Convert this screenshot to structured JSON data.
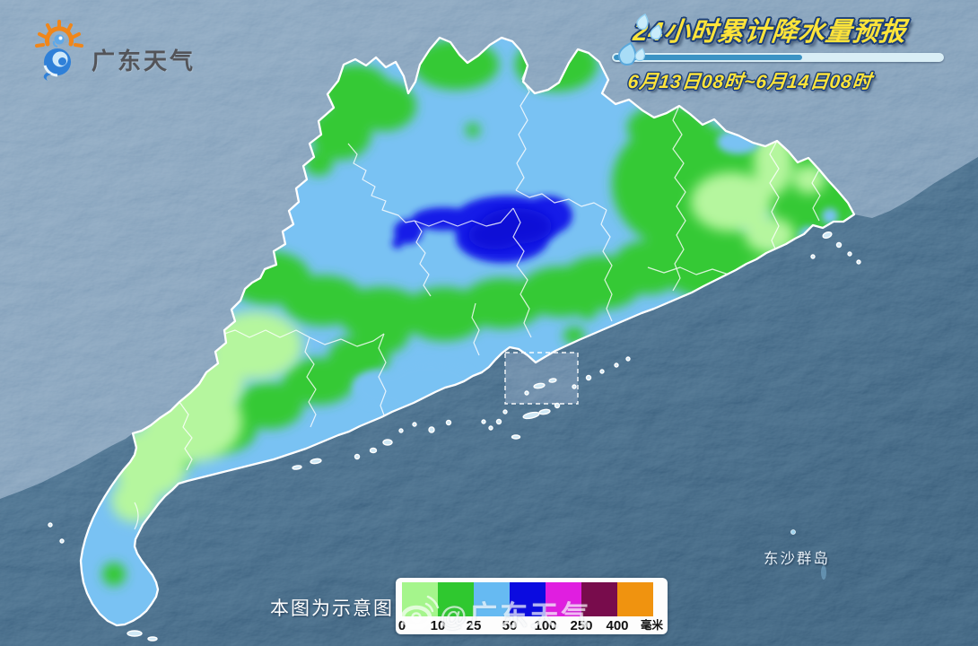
{
  "branding": {
    "logo_text": "广东天气"
  },
  "header": {
    "title": "24小时累计降水量预报",
    "subtitle": "6月13日08时~6月14日08时"
  },
  "map": {
    "island_label": "东沙群岛",
    "disclaimer": "本图为示意图",
    "watermark": "@广东天气",
    "precip_fill_colors": {
      "rain_0_10": "#b5f69e",
      "rain_10_25": "#35c935",
      "rain_25_50": "#79c2f3",
      "rain_50_100": "#161ce8"
    }
  },
  "legend": {
    "ticks": [
      "0",
      "10",
      "25",
      "50",
      "100",
      "250",
      "400"
    ],
    "unit": "毫米",
    "colors": [
      "#a5f58c",
      "#2fc82f",
      "#66baf2",
      "#0b0be0",
      "#e01ee0",
      "#780c4c",
      "#f0930f"
    ]
  }
}
